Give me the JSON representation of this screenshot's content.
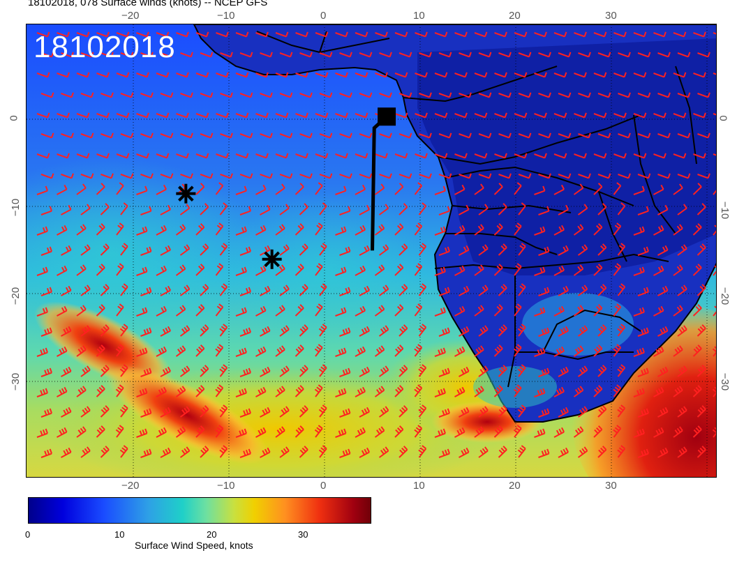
{
  "title": "18102018, 078 Surface winds (knots) -- NCEP GFS",
  "date_stamp": "18102018",
  "x_ticks_top": [
    "−20",
    "−10",
    "0",
    "10",
    "20",
    "30"
  ],
  "x_ticks_bottom": [
    "−20",
    "−10",
    "0",
    "10",
    "20",
    "30"
  ],
  "y_ticks_left": [
    "0",
    "−10",
    "−20",
    "−30"
  ],
  "y_ticks_right": [
    "0",
    "−10",
    "−20",
    "−30"
  ],
  "colorbar": {
    "label": "Surface Wind Speed, knots",
    "ticks": [
      "0",
      "10",
      "20",
      "30"
    ],
    "range": [
      0,
      37
    ]
  },
  "markers": {
    "storm_symbols": [
      {
        "lon": -14.5,
        "lat": -8.5
      },
      {
        "lon": -5.5,
        "lat": -16
      }
    ],
    "station": {
      "lon": 6.5,
      "lat": 0.3
    },
    "track": [
      {
        "lon": 6.5,
        "lat": 0.3
      },
      {
        "lon": 5.2,
        "lat": -1
      },
      {
        "lon": 5.0,
        "lat": -15
      }
    ]
  },
  "colors": {
    "wind_barb": "#ff2020",
    "ocean_low": "#1a4cff",
    "land_low": "#0a1fb0",
    "high_wind": "#c00010"
  }
}
